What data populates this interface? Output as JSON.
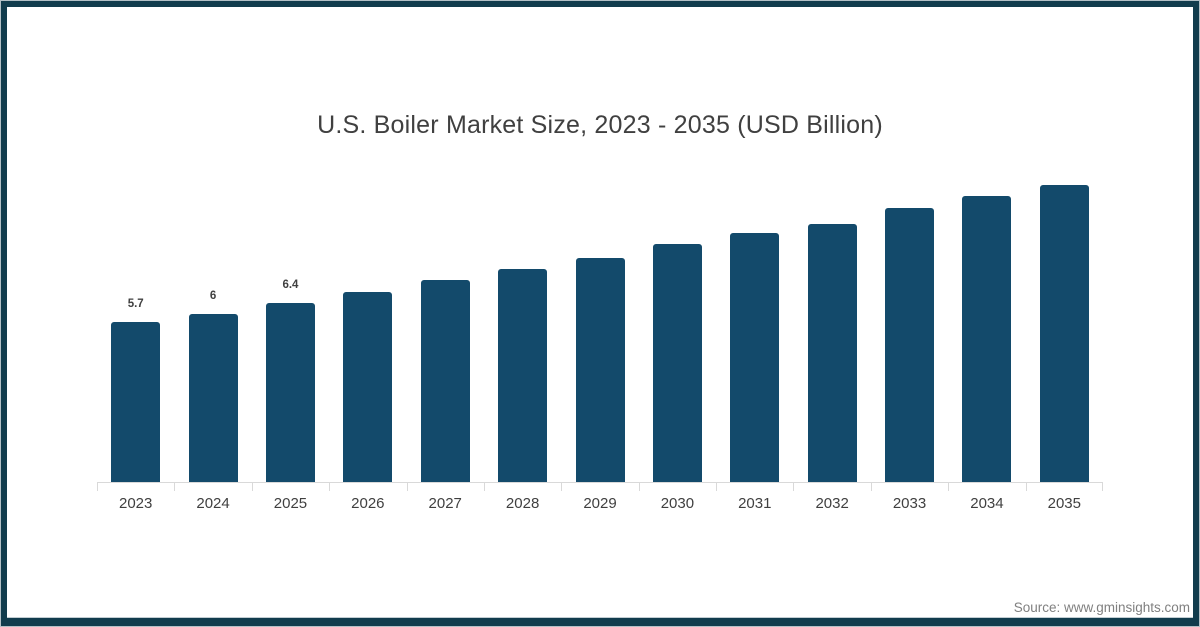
{
  "title": "U.S. Boiler Market Size, 2023 - 2035 (USD Billion)",
  "source": "Source: www.gminsights.com",
  "frame": {
    "band_color": "#113c4d",
    "edge_color": "#b3c0c6",
    "background": "#ffffff"
  },
  "chart_data": {
    "type": "bar",
    "title": "U.S. Boiler Market Size, 2023 - 2035 (USD Billion)",
    "categories": [
      "2023",
      "2024",
      "2025",
      "2026",
      "2027",
      "2028",
      "2029",
      "2030",
      "2031",
      "2032",
      "2033",
      "2034",
      "2035"
    ],
    "values": [
      5.7,
      6,
      6.4,
      6.8,
      7.2,
      7.6,
      8.0,
      8.5,
      8.9,
      9.2,
      9.8,
      10.2,
      10.6
    ],
    "data_labels": [
      "5.7",
      "6",
      "6.4",
      "",
      "",
      "",
      "",
      "",
      "",
      "",
      "",
      "",
      ""
    ],
    "xlabel": "",
    "ylabel": "",
    "ylim": [
      0,
      11.5
    ],
    "grid": false,
    "legend": false,
    "bar_color": "#134a6b",
    "axis_color": "#d9d9d9",
    "tick_color": "#d9d9d9",
    "label_color": "#404040"
  }
}
